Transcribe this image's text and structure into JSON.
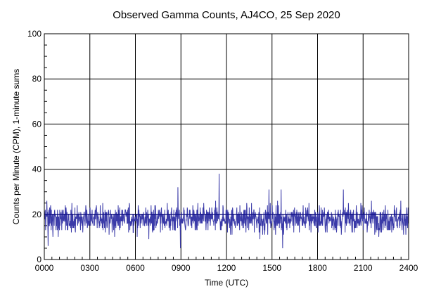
{
  "chart_data": {
    "type": "line",
    "title": "Observed Gamma Counts, AJ4CO, 25 Sep 2020",
    "xlabel": "Time (UTC)",
    "ylabel": "Counts per Minute (CPM), 1-minute sums",
    "x_tick_labels": [
      "0000",
      "0300",
      "0600",
      "0900",
      "1200",
      "1500",
      "1800",
      "2100",
      "2400"
    ],
    "y_tick_labels": [
      "0",
      "20",
      "40",
      "60",
      "80",
      "100"
    ],
    "xlim": [
      0,
      1440
    ],
    "ylim": [
      0,
      100
    ],
    "x_unit": "minutes since 0000 UTC",
    "grid": true,
    "reference_line": {
      "y": 20,
      "color": "#000080"
    },
    "series": [
      {
        "name": "",
        "color": "#3a3aa8",
        "interval_minutes": 1,
        "mean_cpm": 18,
        "typical_range": [
          8,
          29
        ],
        "peaks": [
          {
            "time": "0848",
            "value": 32
          },
          {
            "time": "1131",
            "value": 38
          },
          {
            "time": "1448",
            "value": 31
          },
          {
            "time": "1536",
            "value": 31
          },
          {
            "time": "1942",
            "value": 31
          }
        ],
        "dips": [
          {
            "time": "0015",
            "value": 6
          },
          {
            "time": "0858",
            "value": 5
          },
          {
            "time": "1412",
            "value": 9
          },
          {
            "time": "1542",
            "value": 5
          }
        ]
      }
    ]
  }
}
